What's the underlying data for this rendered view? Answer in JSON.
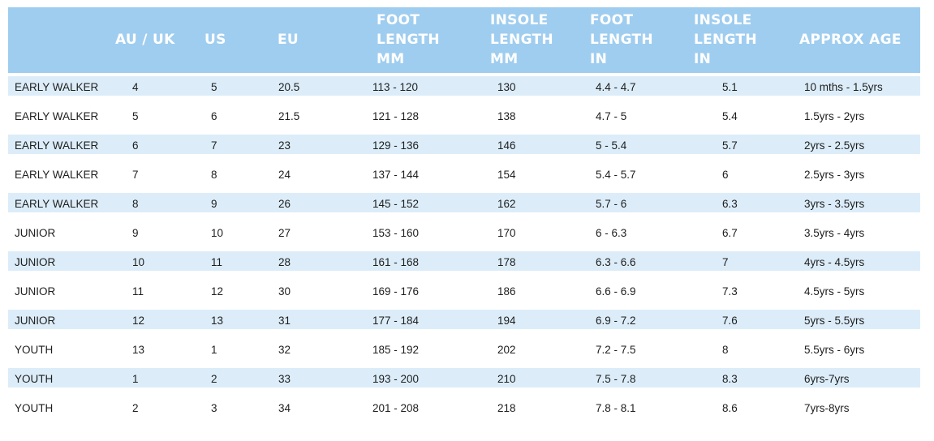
{
  "columns": [
    {
      "key": "category",
      "lines": [
        ""
      ]
    },
    {
      "key": "au_uk",
      "lines": [
        "AU / UK"
      ]
    },
    {
      "key": "us",
      "lines": [
        "US"
      ]
    },
    {
      "key": "eu",
      "lines": [
        "EU"
      ]
    },
    {
      "key": "foot_mm",
      "lines": [
        "FOOT",
        "LENGTH",
        "MM"
      ]
    },
    {
      "key": "insole_mm",
      "lines": [
        "INSOLE",
        "LENGTH",
        "MM"
      ]
    },
    {
      "key": "foot_in",
      "lines": [
        "FOOT",
        "LENGTH",
        "IN"
      ]
    },
    {
      "key": "insole_in",
      "lines": [
        "INSOLE",
        "LENGTH",
        "IN"
      ]
    },
    {
      "key": "age",
      "lines": [
        "APPROX AGE"
      ]
    }
  ],
  "rows": [
    {
      "category": "EARLY WALKER",
      "au_uk": "4",
      "us": "5",
      "eu": "20.5",
      "foot_mm": "113 - 120",
      "insole_mm": "130",
      "foot_in": "4.4 - 4.7",
      "insole_in": "5.1",
      "age": "10 mths - 1.5yrs"
    },
    {
      "category": "EARLY WALKER",
      "au_uk": "5",
      "us": "6",
      "eu": "21.5",
      "foot_mm": "121 - 128",
      "insole_mm": "138",
      "foot_in": "4.7 - 5",
      "insole_in": "5.4",
      "age": "1.5yrs - 2yrs"
    },
    {
      "category": "EARLY WALKER",
      "au_uk": "6",
      "us": "7",
      "eu": "23",
      "foot_mm": "129 - 136",
      "insole_mm": "146",
      "foot_in": "5 - 5.4",
      "insole_in": "5.7",
      "age": "2yrs - 2.5yrs"
    },
    {
      "category": "EARLY WALKER",
      "au_uk": "7",
      "us": "8",
      "eu": "24",
      "foot_mm": "137 - 144",
      "insole_mm": "154",
      "foot_in": "5.4 - 5.7",
      "insole_in": "6",
      "age": "2.5yrs - 3yrs"
    },
    {
      "category": "EARLY WALKER",
      "au_uk": "8",
      "us": "9",
      "eu": "26",
      "foot_mm": "145 - 152",
      "insole_mm": "162",
      "foot_in": "5.7 - 6",
      "insole_in": "6.3",
      "age": "3yrs - 3.5yrs"
    },
    {
      "category": "JUNIOR",
      "au_uk": "9",
      "us": "10",
      "eu": "27",
      "foot_mm": "153 - 160",
      "insole_mm": "170",
      "foot_in": "6 - 6.3",
      "insole_in": "6.7",
      "age": "3.5yrs - 4yrs"
    },
    {
      "category": "JUNIOR",
      "au_uk": "10",
      "us": "11",
      "eu": "28",
      "foot_mm": "161 - 168",
      "insole_mm": "178",
      "foot_in": "6.3 - 6.6",
      "insole_in": "7",
      "age": "4yrs - 4.5yrs"
    },
    {
      "category": "JUNIOR",
      "au_uk": "11",
      "us": "12",
      "eu": "30",
      "foot_mm": "169 - 176",
      "insole_mm": "186",
      "foot_in": "6.6 - 6.9",
      "insole_in": "7.3",
      "age": "4.5yrs - 5yrs"
    },
    {
      "category": "JUNIOR",
      "au_uk": "12",
      "us": "13",
      "eu": "31",
      "foot_mm": "177 - 184",
      "insole_mm": "194",
      "foot_in": "6.9 - 7.2",
      "insole_in": "7.6",
      "age": "5yrs - 5.5yrs"
    },
    {
      "category": "YOUTH",
      "au_uk": "13",
      "us": "1",
      "eu": "32",
      "foot_mm": "185 - 192",
      "insole_mm": "202",
      "foot_in": "7.2 - 7.5",
      "insole_in": "8",
      "age": "5.5yrs - 6yrs"
    },
    {
      "category": "YOUTH",
      "au_uk": "1",
      "us": "2",
      "eu": "33",
      "foot_mm": "193 - 200",
      "insole_mm": "210",
      "foot_in": "7.5 - 7.8",
      "insole_in": "8.3",
      "age": "6yrs-7yrs"
    },
    {
      "category": "YOUTH",
      "au_uk": "2",
      "us": "3",
      "eu": "34",
      "foot_mm": "201 - 208",
      "insole_mm": "218",
      "foot_in": "7.8 - 8.1",
      "insole_in": "8.6",
      "age": "7yrs-8yrs"
    }
  ],
  "colors": {
    "header_bg": "#9fcdef",
    "header_text": "#ffffff",
    "stripe": "#dcedf9"
  }
}
